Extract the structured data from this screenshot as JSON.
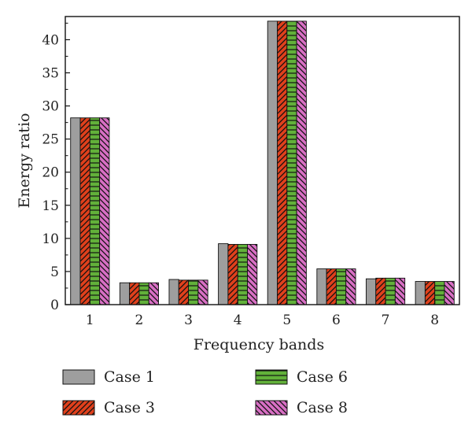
{
  "chart_data": {
    "type": "bar",
    "xlabel": "Frequency bands",
    "ylabel": "Energy ratio",
    "categories": [
      "1",
      "2",
      "3",
      "4",
      "5",
      "6",
      "7",
      "8"
    ],
    "ylim": [
      0,
      43.5
    ],
    "yticks": [
      0,
      5,
      10,
      15,
      20,
      25,
      30,
      35,
      40
    ],
    "grid": false,
    "legend_position": "bottom",
    "series": [
      {
        "name": "Case 1",
        "color": "#9e9e9e",
        "pattern": "solid",
        "values": [
          28.2,
          3.3,
          3.8,
          9.2,
          42.8,
          5.4,
          3.9,
          3.5
        ]
      },
      {
        "name": "Case 3",
        "color": "#e0401c",
        "pattern": "forward-diagonal-hatch",
        "values": [
          28.2,
          3.3,
          3.7,
          9.1,
          42.8,
          5.4,
          4.0,
          3.5
        ]
      },
      {
        "name": "Case 6",
        "color": "#62b13a",
        "pattern": "horizontal-hatch",
        "values": [
          28.2,
          3.3,
          3.7,
          9.1,
          42.8,
          5.4,
          4.0,
          3.5
        ]
      },
      {
        "name": "Case 8",
        "color": "#d86fc4",
        "pattern": "backward-diagonal-hatch",
        "values": [
          28.2,
          3.3,
          3.7,
          9.1,
          42.8,
          5.4,
          4.0,
          3.5
        ]
      }
    ]
  }
}
